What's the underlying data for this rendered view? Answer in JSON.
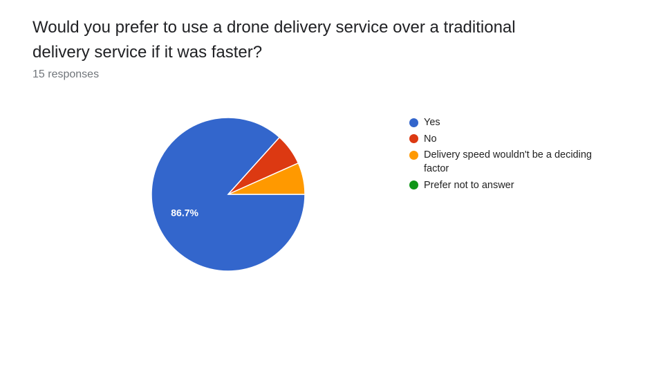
{
  "question": {
    "title": "Would you prefer to use a drone delivery service over a traditional delivery service if it was faster?",
    "responses": "15 responses"
  },
  "chart_data": {
    "type": "pie",
    "categories": [
      "Yes",
      "No",
      "Delivery speed wouldn't be a deciding factor",
      "Prefer not to answer"
    ],
    "values": [
      13,
      1,
      1,
      0
    ],
    "percent_labels": [
      "86.7%",
      "",
      "",
      ""
    ],
    "colors": [
      "#3366cc",
      "#dc3912",
      "#ff9900",
      "#109618"
    ],
    "legend_position": "right"
  },
  "legend": {
    "items": [
      {
        "label": "Yes",
        "color": "#3366cc"
      },
      {
        "label": "No",
        "color": "#dc3912"
      },
      {
        "label": "Delivery speed wouldn't be a deciding factor",
        "color": "#ff9900"
      },
      {
        "label": "Prefer not to answer",
        "color": "#109618"
      }
    ]
  }
}
